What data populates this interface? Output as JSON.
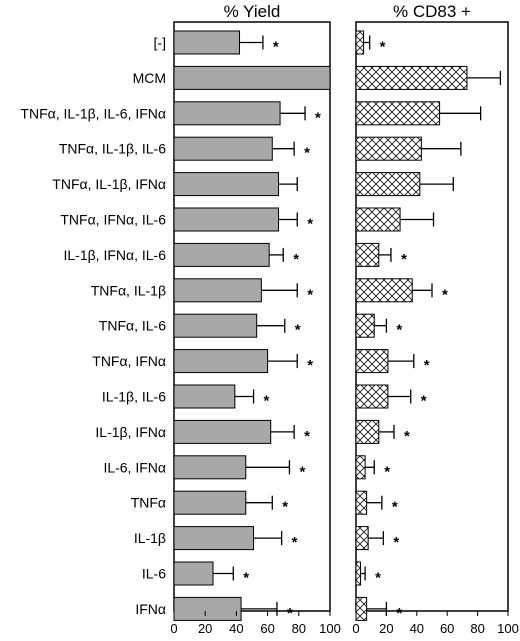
{
  "chart_data": [
    {
      "type": "bar",
      "orientation": "horizontal",
      "title": "% Yield",
      "xlim": [
        0,
        100
      ],
      "xticks": [
        0,
        20,
        40,
        60,
        80,
        100
      ],
      "fill": "#a8a8a8",
      "categories": [
        "[-]",
        "MCM",
        "TNFα, IL-1β, IL-6, IFNα",
        "TNFα, IL-1β, IL-6",
        "TNFα, IL-1β, IFNα",
        "TNFα, IFNα, IL-6",
        "IL-1β, IFNα, IL-6",
        "TNFα, IL-1β",
        "TNFα, IL-6",
        "TNFα, IFNα",
        "IL-1β, IL-6",
        "IL-1β, IFNα",
        "IL-6, IFNα",
        "TNFα",
        "IL-1β",
        "IL-6",
        "IFNα"
      ],
      "values": [
        42,
        100,
        68,
        63,
        67,
        67,
        61,
        56,
        53,
        60,
        39,
        62,
        46,
        46,
        51,
        25,
        43
      ],
      "errors": [
        15,
        0,
        16,
        14,
        12,
        12,
        9,
        23,
        18,
        19,
        12,
        15,
        28,
        17,
        18,
        13,
        23
      ],
      "significance": [
        "*",
        "",
        "*",
        "*",
        "",
        "*",
        "*",
        "*",
        "*",
        "*",
        "*",
        "*",
        "*",
        "*",
        "*",
        "*",
        "*"
      ]
    },
    {
      "type": "bar",
      "orientation": "horizontal",
      "title": "% CD83 +",
      "xlim": [
        0,
        100
      ],
      "xticks": [
        0,
        20,
        40,
        60,
        80,
        100
      ],
      "fill": "crosshatch",
      "categories": [
        "[-]",
        "MCM",
        "TNFα, IL-1β, IL-6, IFNα",
        "TNFα, IL-1β, IL-6",
        "TNFα, IL-1β, IFNα",
        "TNFα, IFNα, IL-6",
        "IL-1β, IFNα, IL-6",
        "TNFα, IL-1β",
        "TNFα, IL-6",
        "TNFα, IFNα",
        "IL-1β, IL-6",
        "IL-1β, IFNα",
        "IL-6, IFNα",
        "TNFα",
        "IL-1β",
        "IL-6",
        "IFNα"
      ],
      "values": [
        5,
        73,
        55,
        43,
        42,
        29,
        15,
        37,
        12,
        21,
        21,
        15,
        6,
        7,
        8,
        3,
        7
      ],
      "errors": [
        4,
        22,
        27,
        26,
        22,
        22,
        8,
        13,
        8,
        17,
        15,
        10,
        6,
        10,
        10,
        3,
        13
      ],
      "significance": [
        "*",
        "",
        "",
        "",
        "",
        "",
        "*",
        "*",
        "*",
        "*",
        "*",
        "*",
        "*",
        "*",
        "*",
        "*",
        "*"
      ]
    }
  ]
}
